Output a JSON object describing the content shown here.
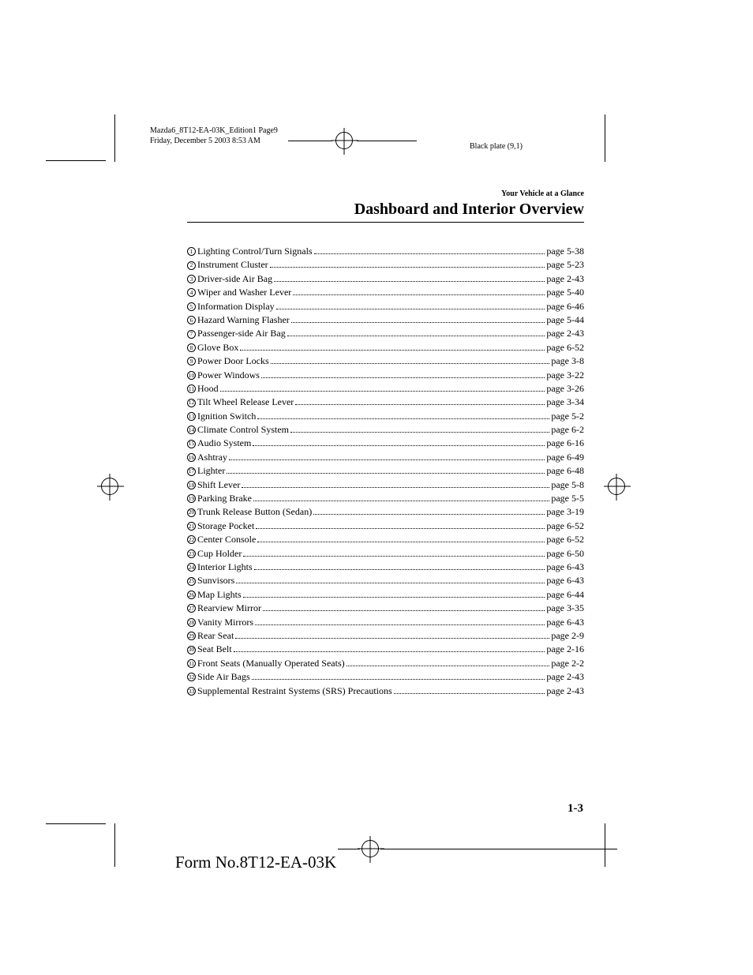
{
  "meta": {
    "line1": "Mazda6_8T12-EA-03K_Edition1 Page9",
    "line2": "Friday, December 5 2003 8:53 AM",
    "plate": "Black plate (9,1)"
  },
  "header": {
    "pre_title": "Your Vehicle at a Glance",
    "title": "Dashboard and Interior Overview"
  },
  "toc": [
    {
      "n": "1",
      "label": "Lighting Control/Turn Signals",
      "page": "page 5-38"
    },
    {
      "n": "2",
      "label": "Instrument Cluster",
      "page": "page 5-23"
    },
    {
      "n": "3",
      "label": "Driver-side Air Bag",
      "page": "page 2-43"
    },
    {
      "n": "4",
      "label": "Wiper and Washer Lever",
      "page": "page 5-40"
    },
    {
      "n": "5",
      "label": "Information Display",
      "page": "page 6-46"
    },
    {
      "n": "6",
      "label": "Hazard Warning Flasher",
      "page": "page 5-44"
    },
    {
      "n": "7",
      "label": "Passenger-side Air Bag",
      "page": "page 2-43"
    },
    {
      "n": "8",
      "label": "Glove Box",
      "page": "page 6-52"
    },
    {
      "n": "9",
      "label": "Power Door Locks",
      "page": "page 3-8"
    },
    {
      "n": "10",
      "label": "Power Windows",
      "page": "page 3-22"
    },
    {
      "n": "11",
      "label": "Hood",
      "page": "page 3-26"
    },
    {
      "n": "12",
      "label": "Tilt Wheel Release Lever",
      "page": "page 3-34"
    },
    {
      "n": "13",
      "label": "Ignition Switch",
      "page": "page 5-2"
    },
    {
      "n": "14",
      "label": "Climate Control System",
      "page": "page 6-2"
    },
    {
      "n": "15",
      "label": "Audio System",
      "page": "page 6-16"
    },
    {
      "n": "16",
      "label": "Ashtray",
      "page": "page 6-49"
    },
    {
      "n": "17",
      "label": "Lighter",
      "page": "page 6-48"
    },
    {
      "n": "18",
      "label": "Shift Lever",
      "page": "page 5-8"
    },
    {
      "n": "19",
      "label": "Parking Brake",
      "page": "page 5-5"
    },
    {
      "n": "20",
      "label": "Trunk Release Button (Sedan)",
      "page": "page 3-19"
    },
    {
      "n": "21",
      "label": "Storage Pocket",
      "page": "page 6-52"
    },
    {
      "n": "22",
      "label": "Center Console",
      "page": "page 6-52"
    },
    {
      "n": "23",
      "label": "Cup Holder",
      "page": "page 6-50"
    },
    {
      "n": "24",
      "label": "Interior Lights",
      "page": "page 6-43"
    },
    {
      "n": "25",
      "label": "Sunvisors",
      "page": "page 6-43"
    },
    {
      "n": "26",
      "label": "Map Lights",
      "page": "page 6-44"
    },
    {
      "n": "27",
      "label": "Rearview Mirror",
      "page": "page 3-35"
    },
    {
      "n": "28",
      "label": "Vanity Mirrors",
      "page": "page 6-43"
    },
    {
      "n": "29",
      "label": "Rear Seat",
      "page": "page 2-9"
    },
    {
      "n": "30",
      "label": "Seat Belt",
      "page": "page 2-16"
    },
    {
      "n": "31",
      "label": "Front Seats (Manually Operated Seats)",
      "page": "page 2-2"
    },
    {
      "n": "32",
      "label": "Side Air Bags",
      "page": "page 2-43"
    },
    {
      "n": "33",
      "label": "Supplemental Restraint Systems (SRS) Precautions",
      "page": "page 2-43"
    }
  ],
  "footer": {
    "page_number": "1-3",
    "form_number": "Form No.8T12-EA-03K"
  }
}
